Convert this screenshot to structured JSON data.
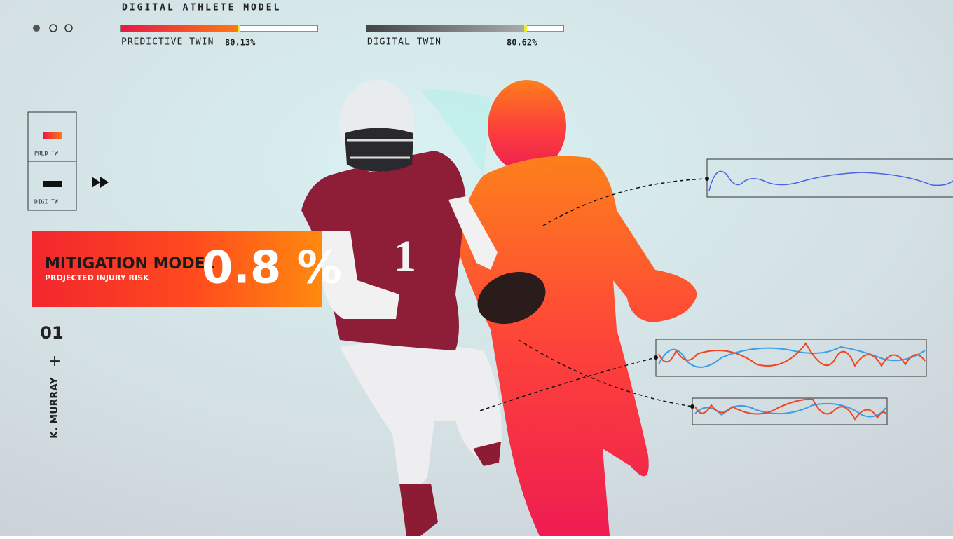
{
  "header": {
    "title": "DIGITAL ATHLETE MODEL",
    "bars": [
      {
        "label": "PREDICTIVE TWIN",
        "value_text": "80.13%"
      },
      {
        "label": "DIGITAL TWIN",
        "value_text": "80.62%"
      }
    ]
  },
  "legend": [
    {
      "label": "PRED TW"
    },
    {
      "label": "DIGI TW"
    }
  ],
  "banner": {
    "title": "MITIGATION MODEL",
    "subtitle": "PROJECTED INJURY RISK",
    "value_text": "0.8 %"
  },
  "player": {
    "number": "01",
    "name": "K. MURRAY",
    "symbol": "+"
  }
}
